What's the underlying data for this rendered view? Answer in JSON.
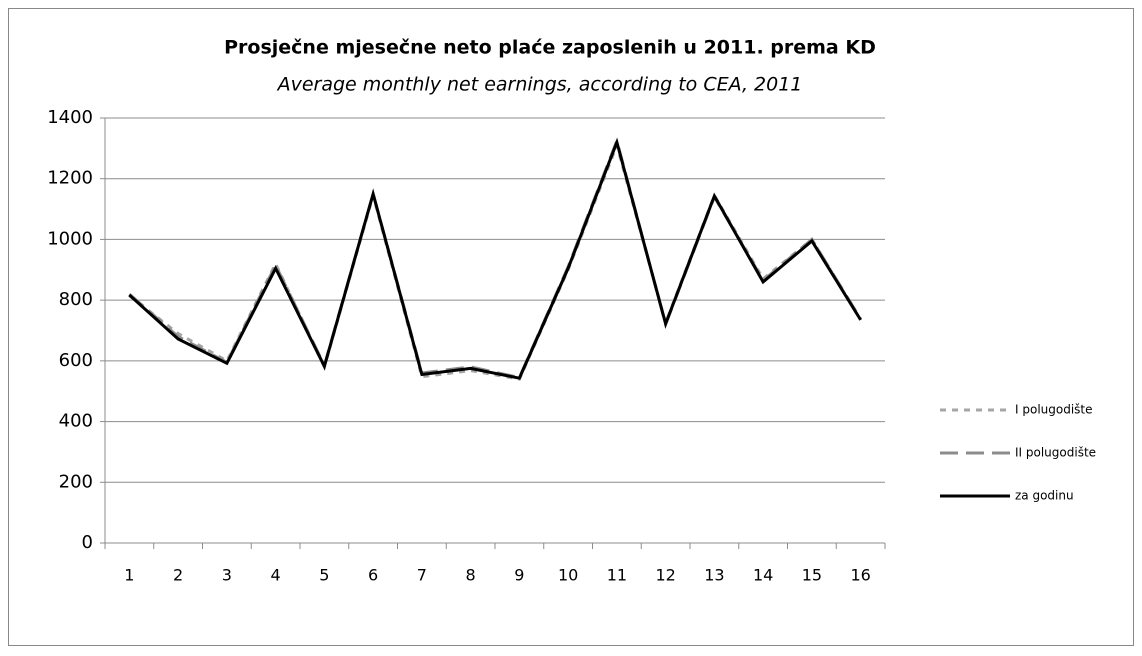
{
  "chart_data": {
    "type": "line",
    "title": "Prosječne mjesečne neto plaće zaposlenih u 2011. prema KD",
    "subtitle": "Average monthly net earnings, according to CEA, 2011",
    "categories": [
      "1",
      "2",
      "3",
      "4",
      "5",
      "6",
      "7",
      "8",
      "9",
      "10",
      "11",
      "12",
      "13",
      "14",
      "15",
      "16"
    ],
    "series": [
      {
        "name": "I polugodište",
        "color": "#a6a6a6",
        "dash": "short",
        "values": [
          815,
          690,
          600,
          920,
          580,
          1145,
          548,
          568,
          540,
          900,
          1310,
          725,
          1145,
          870,
          1000,
          735
        ]
      },
      {
        "name": "II polugodište",
        "color": "#8c8c8c",
        "dash": "long",
        "values": [
          820,
          680,
          595,
          915,
          585,
          1150,
          560,
          580,
          545,
          910,
          1325,
          720,
          1140,
          865,
          1000,
          738
        ]
      },
      {
        "name": "za godinu",
        "color": "#000000",
        "dash": "solid",
        "values": [
          817,
          672,
          592,
          905,
          582,
          1150,
          555,
          575,
          543,
          905,
          1320,
          722,
          1143,
          860,
          995,
          735
        ]
      }
    ],
    "ylim": [
      0,
      1400
    ],
    "yticks": [
      0,
      200,
      400,
      600,
      800,
      1000,
      1200,
      1400
    ],
    "grid": true,
    "legend": "right"
  }
}
